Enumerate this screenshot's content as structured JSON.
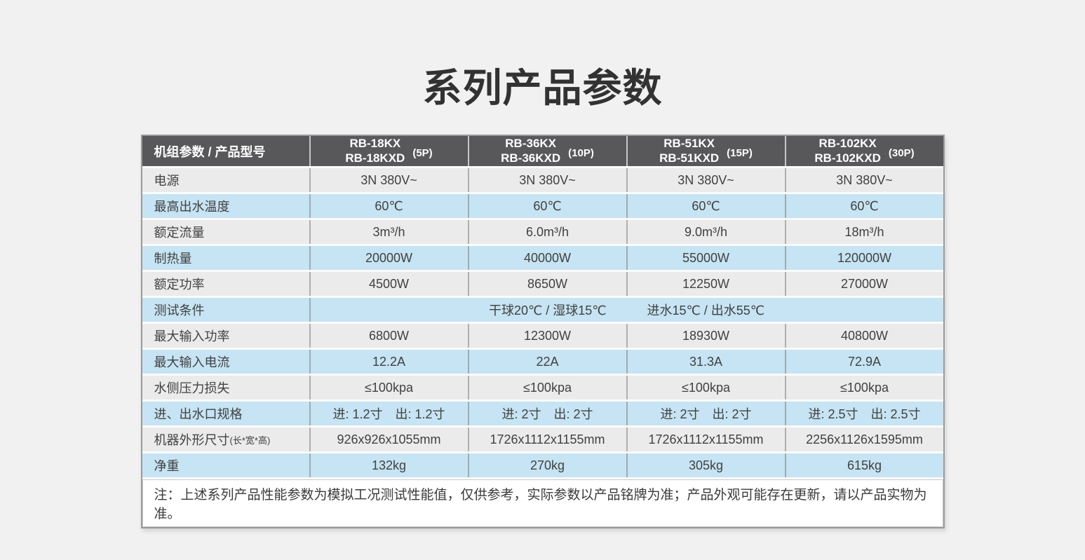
{
  "title": "系列产品参数",
  "table": {
    "header": {
      "param_label": "机组参数 / 产品型号",
      "models": [
        {
          "line1": "RB-18KX",
          "line2": "RB-18KXD",
          "hp": "(5P)"
        },
        {
          "line1": "RB-36KX",
          "line2": "RB-36KXD",
          "hp": "(10P)"
        },
        {
          "line1": "RB-51KX",
          "line2": "RB-51KXD",
          "hp": "(15P)"
        },
        {
          "line1": "RB-102KX",
          "line2": "RB-102KXD",
          "hp": "(30P)"
        }
      ]
    },
    "rows": [
      {
        "label": "电源",
        "values": [
          "3N 380V~",
          "3N 380V~",
          "3N 380V~",
          "3N 380V~"
        ],
        "highlight": false
      },
      {
        "label": "最高出水温度",
        "values": [
          "60℃",
          "60℃",
          "60℃",
          "60℃"
        ],
        "highlight": true
      },
      {
        "label": "额定流量",
        "values": [
          "3m³/h",
          "6.0m³/h",
          "9.0m³/h",
          "18m³/h"
        ],
        "highlight": false
      },
      {
        "label": "制热量",
        "values": [
          "20000W",
          "40000W",
          "55000W",
          "120000W"
        ],
        "highlight": true
      },
      {
        "label": "额定功率",
        "values": [
          "4500W",
          "8650W",
          "12250W",
          "27000W"
        ],
        "highlight": false
      },
      {
        "label": "测试条件",
        "merged": true,
        "value_left": "干球20℃ / 湿球15℃",
        "value_right": "进水15℃ / 出水55℃",
        "highlight": true
      },
      {
        "label": "最大输入功率",
        "values": [
          "6800W",
          "12300W",
          "18930W",
          "40800W"
        ],
        "highlight": false
      },
      {
        "label": "最大输入电流",
        "values": [
          "12.2A",
          "22A",
          "31.3A",
          "72.9A"
        ],
        "highlight": true
      },
      {
        "label": "水侧压力损失",
        "values": [
          "≤100kpa",
          "≤100kpa",
          "≤100kpa",
          "≤100kpa"
        ],
        "highlight": false
      },
      {
        "label": "进、出水口规格",
        "values": [
          "进: 1.2寸　出: 1.2寸",
          "进: 2寸　出: 2寸",
          "进: 2寸　出: 2寸",
          "进: 2.5寸　出: 2.5寸"
        ],
        "highlight": true
      },
      {
        "label": "机器外形尺寸",
        "label_small": "(长*宽*高)",
        "values": [
          "926x926x1055mm",
          "1726x1112x1155mm",
          "1726x1112x1155mm",
          "2256x1126x1595mm"
        ],
        "highlight": false
      },
      {
        "label": "净重",
        "values": [
          "132kg",
          "270kg",
          "305kg",
          "615kg"
        ],
        "highlight": true
      }
    ],
    "note": "注：上述系列产品性能参数为模拟工况测试性能值，仅供参考，实际参数以产品铭牌为准；产品外观可能存在更新，请以产品实物为准。"
  },
  "colors": {
    "header_bg": "#58585a",
    "header_text": "#ffffff",
    "row_blue": "#c6e4f3",
    "row_gray": "#ebebeb",
    "page_bg": "#f1f1f1",
    "text": "#414141"
  }
}
